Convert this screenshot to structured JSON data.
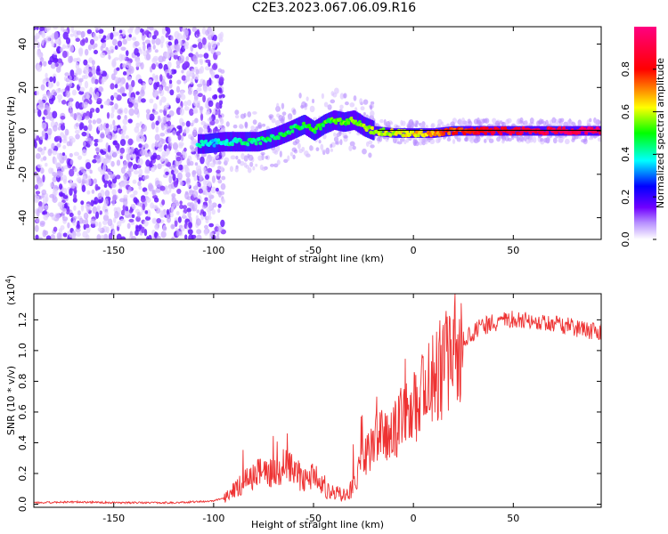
{
  "page": {
    "title": "C2E3.2023.067.06.09.R16"
  },
  "chart_data": [
    {
      "type": "heatmap",
      "xlabel": "Height of straight line (km)",
      "ylabel": "Frequency (Hz)",
      "xlim": [
        -190,
        94
      ],
      "ylim": [
        -50,
        48
      ],
      "x_ticks": [
        -150,
        -100,
        -50,
        0,
        50
      ],
      "y_ticks": [
        -40,
        -20,
        0,
        20,
        40
      ],
      "colorscale": [
        "#ffffff",
        "#7000ff",
        "#0000ff",
        "#00ffff",
        "#00ff00",
        "#ffff00",
        "#ff0000",
        "#ff0080"
      ],
      "frequency_ridge": [
        {
          "x": -105,
          "y": -6
        },
        {
          "x": -95,
          "y": -5
        },
        {
          "x": -85,
          "y": -5
        },
        {
          "x": -78,
          "y": -5
        },
        {
          "x": -70,
          "y": -3
        },
        {
          "x": -62,
          "y": 0
        },
        {
          "x": -55,
          "y": 3
        },
        {
          "x": -50,
          "y": 0
        },
        {
          "x": -45,
          "y": 3
        },
        {
          "x": -40,
          "y": 5
        },
        {
          "x": -35,
          "y": 4
        },
        {
          "x": -30,
          "y": 5
        },
        {
          "x": -25,
          "y": 2
        },
        {
          "x": -20,
          "y": 0
        },
        {
          "x": -10,
          "y": -1
        },
        {
          "x": 0,
          "y": -1
        },
        {
          "x": 10,
          "y": -1
        },
        {
          "x": 20,
          "y": 0
        },
        {
          "x": 40,
          "y": 0
        },
        {
          "x": 60,
          "y": 0
        },
        {
          "x": 94,
          "y": 0
        }
      ],
      "ridge_amplitude": [
        {
          "x": -105,
          "v": 0.35
        },
        {
          "x": -70,
          "v": 0.45
        },
        {
          "x": -45,
          "v": 0.5
        },
        {
          "x": -30,
          "v": 0.55
        },
        {
          "x": -15,
          "v": 0.6
        },
        {
          "x": 0,
          "v": 0.65
        },
        {
          "x": 15,
          "v": 0.75
        },
        {
          "x": 40,
          "v": 0.85
        },
        {
          "x": 94,
          "v": 0.95
        }
      ],
      "colorbar": {
        "label": "Normalized spectral amplitude",
        "range": [
          0.0,
          1.0
        ],
        "ticks": [
          "0.0",
          "0.2",
          "0.4",
          "0.6",
          "0.8"
        ]
      }
    },
    {
      "type": "line",
      "xlabel": "Height of straight line (km)",
      "ylabel": "SNR (10 * v/v)",
      "y_multiplier": "(x10",
      "y_multiplier_exp": "4",
      "xlim": [
        -190,
        94
      ],
      "ylim": [
        -0.02,
        1.37
      ],
      "x_ticks": [
        -150,
        -100,
        -50,
        0,
        50
      ],
      "y_ticks": [
        "0.0",
        "0.2",
        "0.4",
        "0.6",
        "0.8",
        "1.0",
        "1.2"
      ],
      "color": "#ee3333",
      "series": [
        {
          "x": [
            -190,
            -170,
            -150,
            -120,
            -100,
            -92,
            -85,
            -80,
            -75,
            -70,
            -65,
            -60,
            -55,
            -50,
            -45,
            -40,
            -35,
            -30,
            -25,
            -20,
            -15,
            -10,
            -5,
            0,
            5,
            10,
            15,
            20,
            25,
            30,
            35,
            40,
            45,
            50,
            55,
            60,
            70,
            80,
            94
          ],
          "values": [
            0.01,
            0.015,
            0.01,
            0.01,
            0.02,
            0.06,
            0.14,
            0.18,
            0.22,
            0.2,
            0.25,
            0.23,
            0.15,
            0.2,
            0.1,
            0.07,
            0.06,
            0.12,
            0.3,
            0.4,
            0.5,
            0.45,
            0.6,
            0.65,
            0.72,
            0.8,
            0.9,
            1.0,
            1.08,
            1.12,
            1.16,
            1.18,
            1.2,
            1.21,
            1.2,
            1.19,
            1.17,
            1.15,
            1.12
          ]
        }
      ]
    }
  ]
}
